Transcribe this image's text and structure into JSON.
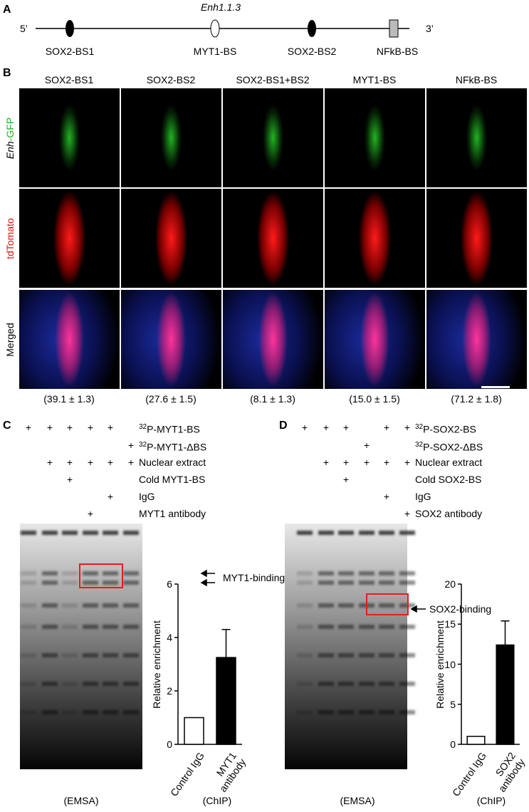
{
  "panel_a": {
    "letter": "A",
    "enhancer": "Enh1.1.3",
    "five_prime": "5’",
    "three_prime": "3’",
    "sites": [
      "SOX2-BS1",
      "MYT1-BS",
      "SOX2-BS2",
      "NFkB-BS"
    ]
  },
  "panel_b": {
    "letter": "B",
    "columns": [
      "SOX2-BS1",
      "SOX2-BS2",
      "SOX2-BS1+BS2",
      "MYT1-BS",
      "NFkB-BS"
    ],
    "rows": [
      {
        "label_parts": [
          "Enh",
          "-GFP"
        ]
      },
      {
        "label": "tdTomato"
      },
      {
        "label": "Merged"
      }
    ],
    "quantification": [
      "(39.1 ± 1.3)",
      "(27.6 ± 1.5)",
      "(8.1 ± 1.3)",
      "(15.0 ± 1.5)",
      "(71.2 ± 1.8)"
    ]
  },
  "panel_c": {
    "letter": "C",
    "conditions": [
      {
        "label_sup": "32",
        "label": "P-MYT1-BS",
        "signs": [
          "+",
          "+",
          "+",
          "+",
          "+",
          null
        ]
      },
      {
        "label_sup": "32",
        "label": "P-MYT1-ΔBS",
        "signs": [
          null,
          null,
          null,
          null,
          null,
          "+"
        ]
      },
      {
        "label": "Nuclear extract",
        "signs": [
          null,
          "+",
          "+",
          "+",
          "+",
          "+"
        ]
      },
      {
        "label": "Cold MYT1-BS",
        "signs": [
          null,
          null,
          "+",
          null,
          null,
          null
        ]
      },
      {
        "label": "IgG",
        "signs": [
          null,
          null,
          null,
          null,
          "+",
          null
        ]
      },
      {
        "label": "MYT1 antibody",
        "signs": [
          null,
          null,
          null,
          "+",
          null,
          null
        ]
      }
    ],
    "band_label": "MYT1-binding",
    "gel_caption": "(EMSA)",
    "chart_caption": "(ChIP)"
  },
  "panel_d": {
    "letter": "D",
    "conditions": [
      {
        "label_sup": "32",
        "label": "P-SOX2-BS",
        "signs": [
          "+",
          "+",
          "+",
          null,
          "+",
          "+"
        ]
      },
      {
        "label_sup": "32",
        "label": "P-SOX2-ΔBS",
        "signs": [
          null,
          null,
          null,
          "+",
          null,
          null
        ]
      },
      {
        "label": "Nuclear extract",
        "signs": [
          null,
          "+",
          "+",
          "+",
          "+",
          "+"
        ]
      },
      {
        "label": "Cold SOX2-BS",
        "signs": [
          null,
          null,
          "+",
          null,
          null,
          null
        ]
      },
      {
        "label": "IgG",
        "signs": [
          null,
          null,
          null,
          null,
          "+",
          null
        ]
      },
      {
        "label": "SOX2 antibody",
        "signs": [
          null,
          null,
          null,
          null,
          null,
          "+"
        ]
      }
    ],
    "band_label": "SOX2-binding",
    "gel_caption": "(EMSA)",
    "chart_caption": "(ChIP)"
  },
  "chart_data": [
    {
      "type": "bar",
      "ylabel": "Relative enrichment",
      "categories": [
        "Control IgG",
        "MYT1 antibody"
      ],
      "values": [
        1,
        3.25
      ],
      "errors": [
        null,
        1.05
      ],
      "colors": [
        "#ffffff",
        "#000000"
      ],
      "ylim": [
        0,
        6
      ],
      "yticks": [
        0,
        2,
        4,
        6
      ]
    },
    {
      "type": "bar",
      "ylabel": "Relative enrichment",
      "categories": [
        "Control IgG",
        "SOX2 antibody"
      ],
      "values": [
        1,
        12.4
      ],
      "errors": [
        null,
        3.0
      ],
      "colors": [
        "#ffffff",
        "#000000"
      ],
      "ylim": [
        0,
        20
      ],
      "yticks": [
        0,
        5,
        10,
        15,
        20
      ]
    }
  ]
}
